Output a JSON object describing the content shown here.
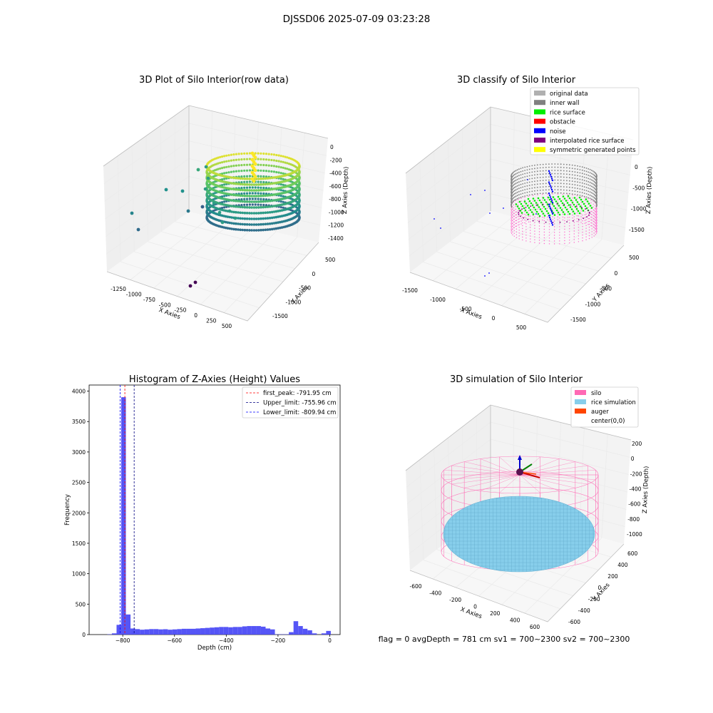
{
  "title": "DJSSD06 2025-07-09 03:23:28",
  "status_line": "flag = 0     avgDepth = 781 cm  sv1 = 700~2300  sv2 = 700~2300",
  "chart_data": [
    {
      "type": "scatter",
      "id": "raw",
      "title": "3D Plot of Silo Interior(row data)",
      "xlabel": "X Axies",
      "ylabel": "Y Axies",
      "zlabel": "Z Axies (Depth)",
      "x_ticks": [
        "-1250",
        "-1000",
        "-750",
        "-500",
        "-250",
        "0",
        "250",
        "500"
      ],
      "y_ticks": [
        "500",
        "0",
        "-500",
        "-1000",
        "-1500"
      ],
      "z_ticks": [
        "0",
        "-200",
        "-400",
        "-600",
        "-800",
        "-1000",
        "-1200",
        "-1400"
      ],
      "colormap": "viridis"
    },
    {
      "type": "scatter",
      "id": "classify",
      "title": "3D classify of Silo Interior",
      "xlabel": "X Axies",
      "ylabel": "Y Axies",
      "zlabel": "Z Axies (Depth)",
      "x_ticks": [
        "-1500",
        "-1000",
        "-500",
        "0",
        "500"
      ],
      "y_ticks": [
        "500",
        "0",
        "-500",
        "-1000",
        "-1500"
      ],
      "z_ticks": [
        "0",
        "-500",
        "-1000",
        "-1500"
      ],
      "legend": [
        {
          "label": "original data",
          "color": "#b0b0b0"
        },
        {
          "label": "inner wall",
          "color": "#808080"
        },
        {
          "label": "rice surface",
          "color": "#00ee00"
        },
        {
          "label": "obstacle",
          "color": "#ff0000"
        },
        {
          "label": "noise",
          "color": "#0000ff"
        },
        {
          "label": "interpolated rice surface",
          "color": "#800080"
        },
        {
          "label": "symmetric generated points",
          "color": "#ffff00"
        }
      ],
      "legend_position": "top-right"
    },
    {
      "type": "bar",
      "id": "histogram",
      "title": "Histogram of Z-Axies (Height) Values",
      "xlabel": "Depth (cm)",
      "ylabel": "Frequency",
      "xlim": [
        -930,
        40
      ],
      "ylim": [
        0,
        4100
      ],
      "x_ticks": [
        -800,
        -600,
        -400,
        -200,
        0
      ],
      "y_ticks": [
        0,
        500,
        1000,
        1500,
        2000,
        2500,
        3000,
        3500,
        4000
      ],
      "bar_color": "#4646f5",
      "bin_width": 18,
      "bins": [
        [
          -860,
          5
        ],
        [
          -842,
          20
        ],
        [
          -824,
          160
        ],
        [
          -806,
          3900
        ],
        [
          -788,
          330
        ],
        [
          -770,
          100
        ],
        [
          -752,
          90
        ],
        [
          -734,
          80
        ],
        [
          -716,
          85
        ],
        [
          -698,
          90
        ],
        [
          -680,
          90
        ],
        [
          -662,
          85
        ],
        [
          -644,
          88
        ],
        [
          -626,
          80
        ],
        [
          -608,
          85
        ],
        [
          -590,
          90
        ],
        [
          -572,
          95
        ],
        [
          -554,
          95
        ],
        [
          -536,
          95
        ],
        [
          -518,
          100
        ],
        [
          -500,
          105
        ],
        [
          -482,
          110
        ],
        [
          -464,
          115
        ],
        [
          -446,
          120
        ],
        [
          -428,
          125
        ],
        [
          -410,
          125
        ],
        [
          -392,
          120
        ],
        [
          -374,
          125
        ],
        [
          -356,
          125
        ],
        [
          -338,
          135
        ],
        [
          -320,
          140
        ],
        [
          -302,
          140
        ],
        [
          -284,
          140
        ],
        [
          -266,
          130
        ],
        [
          -248,
          100
        ],
        [
          -230,
          85
        ],
        [
          -212,
          5
        ],
        [
          -194,
          5
        ],
        [
          -176,
          5
        ],
        [
          -158,
          40
        ],
        [
          -140,
          220
        ],
        [
          -122,
          140
        ],
        [
          -104,
          95
        ],
        [
          -86,
          70
        ],
        [
          -68,
          20
        ],
        [
          -50,
          0
        ],
        [
          -32,
          20
        ],
        [
          -14,
          60
        ]
      ],
      "lines": [
        {
          "label": "first_peak: -791.95 cm",
          "value": -791.95,
          "color": "#ff0000"
        },
        {
          "label": "Upper_limit: -755.96 cm",
          "value": -755.96,
          "color": "#000080"
        },
        {
          "label": "Lower_limit: -809.94 cm",
          "value": -809.94,
          "color": "#0000ff"
        }
      ],
      "legend_position": "top-right"
    },
    {
      "type": "scatter",
      "id": "simulation",
      "title": "3D simulation of Silo Interior",
      "xlabel": "X Axies",
      "ylabel": "Y Axies",
      "zlabel": "Z Axies (Depth)",
      "x_ticks": [
        "-600",
        "-400",
        "-200",
        "0",
        "200",
        "400",
        "600"
      ],
      "y_ticks": [
        "600",
        "400",
        "200",
        "0",
        "-200",
        "-400",
        "-600"
      ],
      "z_ticks": [
        "200",
        "0",
        "-200",
        "-400",
        "-600",
        "-800",
        "-1000"
      ],
      "legend": [
        {
          "label": "silo",
          "color": "#ff69b4"
        },
        {
          "label": "rice simulation",
          "color": "#87ceeb"
        },
        {
          "label": "auger",
          "color": "#ff4500"
        },
        {
          "label": "center(0,0)",
          "color": ""
        }
      ],
      "legend_position": "top-right"
    }
  ]
}
